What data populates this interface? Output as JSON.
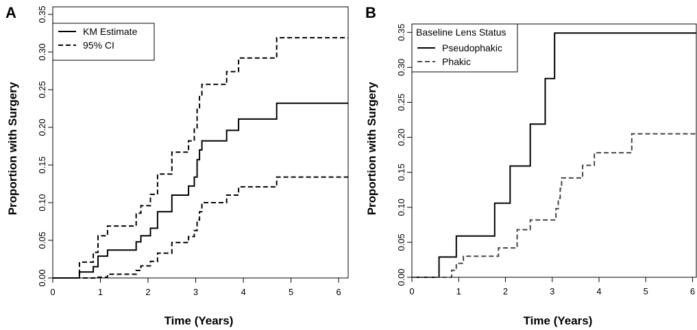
{
  "chart_data": [
    {
      "panel_label": "A",
      "type": "line",
      "step": true,
      "xlabel": "Time (Years)",
      "ylabel": "Proportion with Surgery",
      "xlim": [
        0,
        6.2
      ],
      "ylim": [
        0,
        0.36
      ],
      "x_ticks": [
        "0",
        "1",
        "2",
        "3",
        "4",
        "5",
        "6"
      ],
      "y_ticks": [
        "0.00",
        "0.05",
        "0.10",
        "0.15",
        "0.20",
        "0.25",
        "0.30",
        "0.35"
      ],
      "grid": false,
      "legend": {
        "position": "top-left",
        "title": ""
      },
      "series": [
        {
          "name": "KM Estimate",
          "style": "solid",
          "points": [
            [
              0,
              0
            ],
            [
              0.56,
              0
            ],
            [
              0.56,
              0.008
            ],
            [
              0.85,
              0.008
            ],
            [
              0.85,
              0.015
            ],
            [
              0.95,
              0.015
            ],
            [
              0.95,
              0.029
            ],
            [
              1.15,
              0.029
            ],
            [
              1.15,
              0.037
            ],
            [
              1.75,
              0.037
            ],
            [
              1.75,
              0.048
            ],
            [
              1.85,
              0.048
            ],
            [
              1.85,
              0.056
            ],
            [
              2.05,
              0.056
            ],
            [
              2.05,
              0.066
            ],
            [
              2.2,
              0.066
            ],
            [
              2.2,
              0.088
            ],
            [
              2.5,
              0.088
            ],
            [
              2.5,
              0.11
            ],
            [
              2.85,
              0.11
            ],
            [
              2.85,
              0.122
            ],
            [
              2.97,
              0.122
            ],
            [
              2.97,
              0.134
            ],
            [
              3.03,
              0.134
            ],
            [
              3.03,
              0.157
            ],
            [
              3.08,
              0.157
            ],
            [
              3.08,
              0.17
            ],
            [
              3.13,
              0.17
            ],
            [
              3.13,
              0.182
            ],
            [
              3.65,
              0.182
            ],
            [
              3.65,
              0.196
            ],
            [
              3.9,
              0.196
            ],
            [
              3.9,
              0.211
            ],
            [
              4.7,
              0.211
            ],
            [
              4.7,
              0.232
            ],
            [
              6.2,
              0.232
            ]
          ]
        },
        {
          "name": "95% CI",
          "style": "dashed",
          "points": [
            [
              0,
              0
            ],
            [
              0.56,
              0
            ],
            [
              0.56,
              0.021
            ],
            [
              0.85,
              0.021
            ],
            [
              0.85,
              0.034
            ],
            [
              0.95,
              0.034
            ],
            [
              0.95,
              0.056
            ],
            [
              1.15,
              0.056
            ],
            [
              1.15,
              0.069
            ],
            [
              1.75,
              0.069
            ],
            [
              1.75,
              0.086
            ],
            [
              1.85,
              0.086
            ],
            [
              1.85,
              0.096
            ],
            [
              2.05,
              0.096
            ],
            [
              2.05,
              0.111
            ],
            [
              2.2,
              0.111
            ],
            [
              2.2,
              0.138
            ],
            [
              2.5,
              0.138
            ],
            [
              2.5,
              0.167
            ],
            [
              2.85,
              0.167
            ],
            [
              2.85,
              0.182
            ],
            [
              2.97,
              0.182
            ],
            [
              2.97,
              0.198
            ],
            [
              3.03,
              0.198
            ],
            [
              3.03,
              0.226
            ],
            [
              3.08,
              0.226
            ],
            [
              3.08,
              0.242
            ],
            [
              3.13,
              0.242
            ],
            [
              3.13,
              0.257
            ],
            [
              3.65,
              0.257
            ],
            [
              3.65,
              0.274
            ],
            [
              3.9,
              0.274
            ],
            [
              3.9,
              0.292
            ],
            [
              4.7,
              0.292
            ],
            [
              4.7,
              0.319
            ],
            [
              6.2,
              0.319
            ]
          ]
        },
        {
          "name": "",
          "style": "dashed",
          "points": [
            [
              0,
              0
            ],
            [
              0.95,
              0
            ],
            [
              0.95,
              0.001
            ],
            [
              1.15,
              0.001
            ],
            [
              1.15,
              0.005
            ],
            [
              1.75,
              0.005
            ],
            [
              1.75,
              0.01
            ],
            [
              1.85,
              0.01
            ],
            [
              1.85,
              0.016
            ],
            [
              2.05,
              0.016
            ],
            [
              2.05,
              0.022
            ],
            [
              2.2,
              0.022
            ],
            [
              2.2,
              0.033
            ],
            [
              2.5,
              0.033
            ],
            [
              2.5,
              0.047
            ],
            [
              2.85,
              0.047
            ],
            [
              2.85,
              0.055
            ],
            [
              2.97,
              0.055
            ],
            [
              2.97,
              0.063
            ],
            [
              3.03,
              0.063
            ],
            [
              3.03,
              0.077
            ],
            [
              3.08,
              0.077
            ],
            [
              3.08,
              0.088
            ],
            [
              3.13,
              0.088
            ],
            [
              3.13,
              0.1
            ],
            [
              3.65,
              0.1
            ],
            [
              3.65,
              0.11
            ],
            [
              3.9,
              0.11
            ],
            [
              3.9,
              0.121
            ],
            [
              4.7,
              0.121
            ],
            [
              4.7,
              0.134
            ],
            [
              6.2,
              0.134
            ]
          ]
        }
      ]
    },
    {
      "panel_label": "B",
      "type": "line",
      "step": true,
      "xlabel": "Time (Years)",
      "ylabel": "Proportion with Surgery",
      "xlim": [
        0,
        6.08
      ],
      "ylim": [
        0,
        0.362
      ],
      "x_ticks": [
        "0",
        "1",
        "2",
        "3",
        "4",
        "5",
        "6"
      ],
      "y_ticks": [
        "0.00",
        "0.05",
        "0.10",
        "0.15",
        "0.20",
        "0.25",
        "0.30",
        "0.35"
      ],
      "grid": false,
      "legend": {
        "position": "top-left",
        "title": "Baseline Lens Status"
      },
      "series": [
        {
          "name": "Pseudophakic",
          "style": "solid",
          "points": [
            [
              0,
              0
            ],
            [
              0.58,
              0
            ],
            [
              0.58,
              0.029
            ],
            [
              0.95,
              0.029
            ],
            [
              0.95,
              0.059
            ],
            [
              1.77,
              0.059
            ],
            [
              1.77,
              0.106
            ],
            [
              2.1,
              0.106
            ],
            [
              2.1,
              0.159
            ],
            [
              2.53,
              0.159
            ],
            [
              2.53,
              0.219
            ],
            [
              2.85,
              0.219
            ],
            [
              2.85,
              0.284
            ],
            [
              3.05,
              0.284
            ],
            [
              3.05,
              0.349
            ],
            [
              6.08,
              0.349
            ]
          ]
        },
        {
          "name": "Phakic",
          "style": "dashed",
          "points": [
            [
              0,
              0
            ],
            [
              0.85,
              0
            ],
            [
              0.85,
              0.01
            ],
            [
              0.95,
              0.01
            ],
            [
              0.95,
              0.02
            ],
            [
              1.1,
              0.02
            ],
            [
              1.1,
              0.03
            ],
            [
              1.85,
              0.03
            ],
            [
              1.85,
              0.042
            ],
            [
              2.25,
              0.042
            ],
            [
              2.25,
              0.068
            ],
            [
              2.53,
              0.068
            ],
            [
              2.53,
              0.082
            ],
            [
              3.08,
              0.082
            ],
            [
              3.08,
              0.098
            ],
            [
              3.13,
              0.098
            ],
            [
              3.13,
              0.113
            ],
            [
              3.17,
              0.113
            ],
            [
              3.17,
              0.127
            ],
            [
              3.2,
              0.127
            ],
            [
              3.2,
              0.142
            ],
            [
              3.65,
              0.142
            ],
            [
              3.65,
              0.16
            ],
            [
              3.9,
              0.16
            ],
            [
              3.9,
              0.178
            ],
            [
              4.7,
              0.178
            ],
            [
              4.7,
              0.205
            ],
            [
              6.08,
              0.205
            ]
          ]
        }
      ]
    }
  ]
}
